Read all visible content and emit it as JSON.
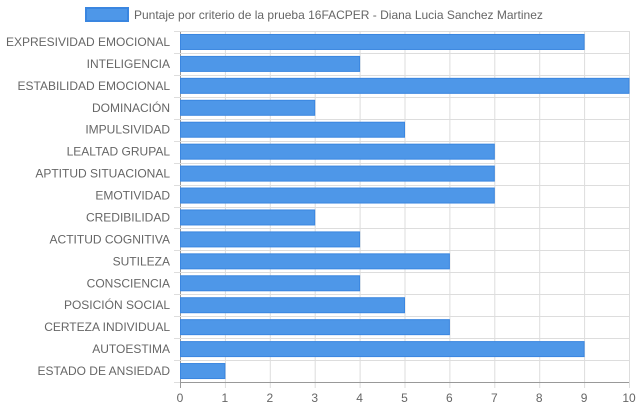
{
  "chart_data": {
    "type": "bar",
    "orientation": "horizontal",
    "title": "",
    "xlabel": "",
    "ylabel": "",
    "xlim": [
      0,
      10
    ],
    "x_ticks": [
      0,
      1,
      2,
      3,
      4,
      5,
      6,
      7,
      8,
      9,
      10
    ],
    "grid": true,
    "legend_position": "top-center",
    "colors": {
      "bar_fill": "#4e97e8",
      "bar_stroke": "#3a86e0",
      "grid": "#dddddd",
      "axis": "#999999",
      "text": "#666666"
    },
    "categories": [
      "EXPRESIVIDAD EMOCIONAL",
      "INTELIGENCIA",
      "ESTABILIDAD EMOCIONAL",
      "DOMINACIÓN",
      "IMPULSIVIDAD",
      "LEALTAD GRUPAL",
      "APTITUD SITUACIONAL",
      "EMOTIVIDAD",
      "CREDIBILIDAD",
      "ACTITUD COGNITIVA",
      "SUTILEZA",
      "CONSCIENCIA",
      "POSICIÓN SOCIAL",
      "CERTEZA INDIVIDUAL",
      "AUTOESTIMA",
      "ESTADO DE ANSIEDAD"
    ],
    "series": [
      {
        "name": "Puntaje por criterio de la prueba 16FACPER - Diana Lucia Sanchez Martinez",
        "values": [
          9,
          4,
          10,
          3,
          5,
          7,
          7,
          7,
          3,
          4,
          6,
          4,
          5,
          6,
          9,
          1
        ]
      }
    ]
  }
}
